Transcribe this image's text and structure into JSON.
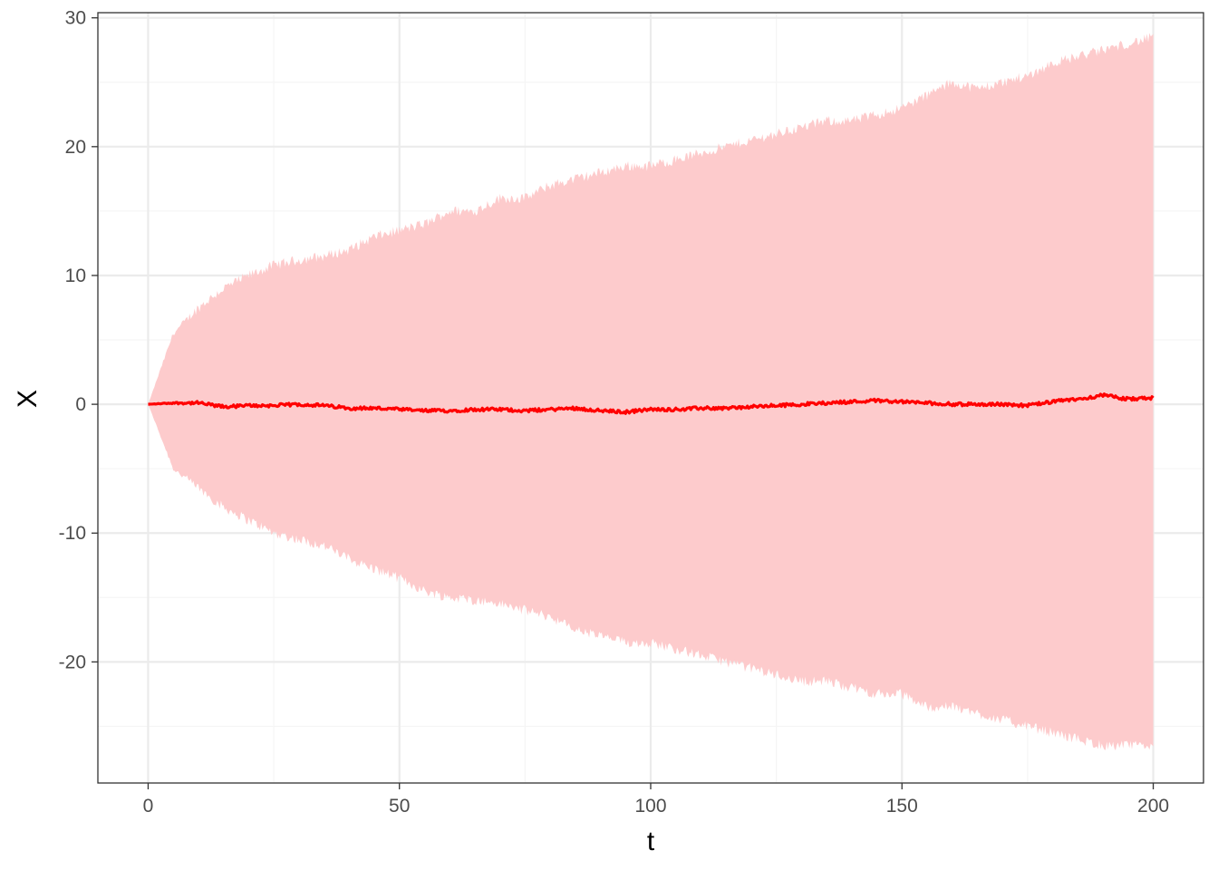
{
  "chart_data": {
    "type": "area",
    "title": "",
    "xlabel": "t",
    "ylabel": "X",
    "xlim": [
      -10,
      210
    ],
    "ylim": [
      -29.4,
      30.4
    ],
    "x_ticks": [
      0,
      50,
      100,
      150,
      200
    ],
    "x_tick_labels": [
      "0",
      "50",
      "100",
      "150",
      "200"
    ],
    "y_ticks": [
      -20,
      -10,
      0,
      10,
      20,
      30
    ],
    "y_tick_labels": [
      "-20",
      "-10",
      "0",
      "10",
      "20",
      "30"
    ],
    "x_minor_ticks": [
      25,
      75,
      125,
      175
    ],
    "y_minor_ticks": [
      -25,
      -15,
      -5,
      5,
      15,
      25
    ],
    "grid": true,
    "legend": "none",
    "colors": {
      "band": "#fdcbcc",
      "line": "#ff0000",
      "grid_major": "#ebebeb",
      "grid_minor": "#f5f5f5",
      "panel_border": "#333333"
    },
    "x": [
      0,
      5,
      10,
      15,
      20,
      25,
      30,
      35,
      40,
      45,
      50,
      55,
      60,
      65,
      70,
      75,
      80,
      85,
      90,
      95,
      100,
      105,
      110,
      115,
      120,
      125,
      130,
      135,
      140,
      145,
      150,
      155,
      160,
      165,
      170,
      175,
      180,
      185,
      190,
      195,
      200
    ],
    "series": [
      {
        "role": "upper",
        "values": [
          0,
          5.5,
          7.5,
          9.0,
          10.0,
          10.8,
          11.2,
          11.5,
          12.0,
          13.0,
          13.5,
          14.0,
          15.0,
          15.0,
          16.0,
          16.0,
          17.0,
          17.5,
          18.0,
          18.5,
          18.5,
          19.0,
          19.5,
          20.0,
          20.5,
          21.0,
          21.5,
          22.0,
          22.0,
          22.5,
          23.0,
          24.0,
          25.0,
          24.5,
          25.0,
          25.5,
          26.5,
          27.0,
          27.5,
          28.0,
          28.5
        ]
      },
      {
        "role": "lower",
        "values": [
          0,
          -5.0,
          -6.5,
          -8.0,
          -9.0,
          -10.0,
          -10.5,
          -11.0,
          -12.0,
          -12.8,
          -13.5,
          -14.5,
          -15.0,
          -15.2,
          -15.5,
          -16.0,
          -16.5,
          -17.5,
          -18.0,
          -18.5,
          -18.5,
          -19.0,
          -19.5,
          -20.0,
          -20.5,
          -21.0,
          -21.5,
          -21.5,
          -22.0,
          -22.5,
          -22.5,
          -23.5,
          -23.5,
          -24.0,
          -24.5,
          -25.0,
          -25.5,
          -26.0,
          -26.5,
          -26.5,
          -26.5
        ]
      },
      {
        "role": "mean",
        "values": [
          0,
          0.1,
          0.1,
          -0.2,
          -0.1,
          -0.1,
          0.0,
          -0.1,
          -0.3,
          -0.3,
          -0.4,
          -0.5,
          -0.5,
          -0.4,
          -0.4,
          -0.5,
          -0.4,
          -0.3,
          -0.5,
          -0.6,
          -0.4,
          -0.4,
          -0.3,
          -0.3,
          -0.2,
          -0.1,
          0.0,
          0.1,
          0.2,
          0.3,
          0.2,
          0.1,
          0.0,
          0.0,
          0.0,
          -0.1,
          0.2,
          0.4,
          0.7,
          0.4,
          0.5
        ]
      }
    ]
  }
}
